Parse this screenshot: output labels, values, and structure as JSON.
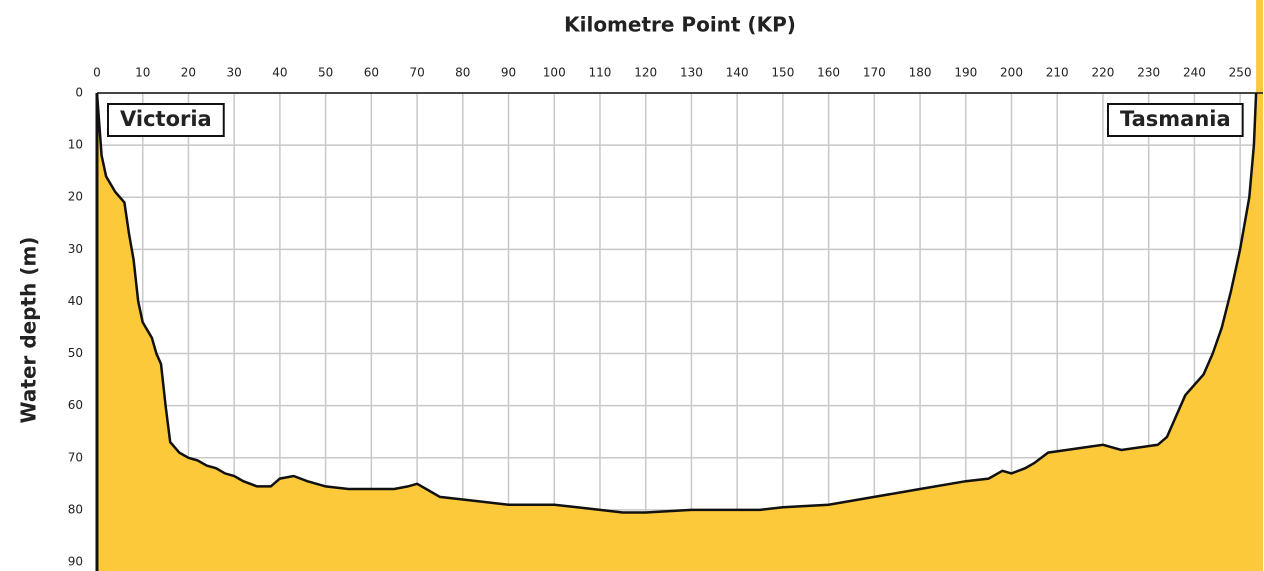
{
  "chart_data": {
    "type": "area",
    "title": "Kilometre Point (KP)",
    "y_label": "Water depth (m)",
    "annotations": [
      "Victoria",
      "Tasmania"
    ],
    "x": [
      0,
      1,
      2,
      4,
      6,
      7,
      8,
      9,
      10,
      12,
      13,
      14,
      15,
      16,
      18,
      20,
      22,
      24,
      26,
      28,
      30,
      32,
      35,
      38,
      40,
      43,
      46,
      50,
      55,
      60,
      65,
      68,
      70,
      72,
      75,
      80,
      85,
      90,
      95,
      100,
      105,
      110,
      115,
      120,
      130,
      140,
      145,
      150,
      160,
      170,
      180,
      190,
      195,
      198,
      200,
      203,
      205,
      208,
      212,
      216,
      220,
      224,
      228,
      232,
      234,
      236,
      238,
      240,
      242,
      244,
      246,
      248,
      250,
      252,
      253,
      253.5
    ],
    "series": [
      {
        "name": "Water depth",
        "color": "#fcc93a",
        "values": [
          0,
          12,
          16,
          19,
          21,
          27,
          32,
          40,
          44,
          47,
          50,
          52,
          60,
          67,
          69,
          70,
          70.5,
          71.5,
          72,
          73,
          73.5,
          74.5,
          75.5,
          75.5,
          74,
          73.5,
          74.5,
          75.5,
          76,
          76,
          76,
          75.5,
          75,
          76,
          77.5,
          78,
          78.5,
          79,
          79,
          79,
          79.5,
          80,
          80.5,
          80.5,
          80,
          80,
          80,
          79.5,
          79,
          77.5,
          76,
          74.5,
          74,
          72.5,
          73,
          72,
          71,
          69,
          68.5,
          68,
          67.5,
          68.5,
          68,
          67.5,
          66,
          62,
          58,
          56,
          54,
          50,
          45,
          38,
          30,
          20,
          10,
          0
        ]
      }
    ],
    "xlim": [
      0,
      255
    ],
    "xticks": [
      0,
      10,
      20,
      30,
      40,
      50,
      60,
      70,
      80,
      90,
      100,
      110,
      120,
      130,
      140,
      150,
      160,
      170,
      180,
      190,
      200,
      210,
      220,
      230,
      240,
      250
    ],
    "ylim": [
      0,
      90
    ],
    "yticks": [
      0,
      10,
      20,
      30,
      40,
      50,
      60,
      70,
      80,
      90
    ],
    "y_inverted": true,
    "x_axis_position": "top",
    "grid": true
  }
}
